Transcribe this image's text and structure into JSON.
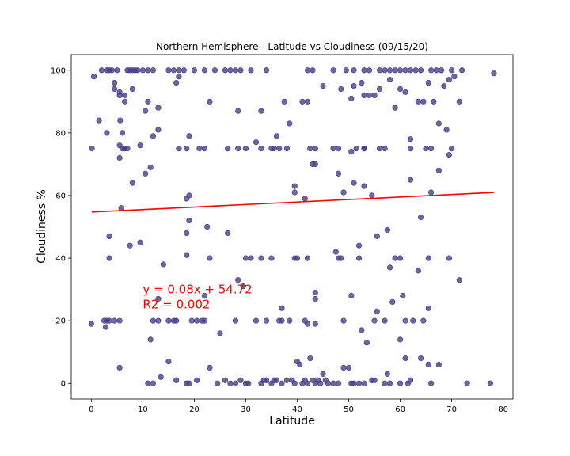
{
  "chart_data": {
    "type": "scatter",
    "title": "Northern Hemisphere - Latitude vs Cloudiness (09/15/20)",
    "xlabel": "Latitude",
    "ylabel": "Cloudiness %",
    "xlim": [
      -3.9,
      81.9
    ],
    "ylim": [
      -5,
      105
    ],
    "xticks": [
      0,
      10,
      20,
      30,
      40,
      50,
      60,
      70,
      80
    ],
    "yticks": [
      0,
      20,
      40,
      60,
      80,
      100
    ],
    "grid": false,
    "marker_color": "#483d8b",
    "regression": {
      "slope": 0.08,
      "intercept": 54.72,
      "x_range": [
        0.1,
        78.2
      ],
      "color": "#ff0000"
    },
    "annotation": {
      "line1": "y = 0.08x + 54.72",
      "line2": "R2 = 0.002",
      "anchor": [
        10,
        30
      ]
    },
    "points": [
      [
        0.1,
        75
      ],
      [
        0.5,
        98
      ],
      [
        1.5,
        84
      ],
      [
        2.0,
        100
      ],
      [
        3.0,
        100
      ],
      [
        3.5,
        100
      ],
      [
        4.0,
        100
      ],
      [
        4.5,
        96
      ],
      [
        5.0,
        100
      ],
      [
        5.5,
        93
      ],
      [
        5.6,
        84
      ],
      [
        6.0,
        80
      ],
      [
        6.5,
        90
      ],
      [
        7.0,
        100
      ],
      [
        7.5,
        100
      ],
      [
        8.0,
        100
      ],
      [
        8.5,
        100
      ],
      [
        9.0,
        100
      ],
      [
        10.0,
        100
      ],
      [
        11.0,
        100
      ],
      [
        12.0,
        100
      ],
      [
        13.0,
        88
      ],
      [
        15.0,
        100
      ],
      [
        16.0,
        100
      ],
      [
        17.0,
        100
      ],
      [
        18.0,
        100
      ],
      [
        19.0,
        79
      ],
      [
        20.0,
        100
      ],
      [
        22.0,
        100
      ],
      [
        24.0,
        100
      ],
      [
        26.0,
        100
      ],
      [
        27.0,
        100
      ],
      [
        28.0,
        100
      ],
      [
        29.0,
        100
      ],
      [
        31.0,
        100
      ],
      [
        34.0,
        100
      ],
      [
        42.0,
        100
      ],
      [
        43.0,
        100
      ],
      [
        47.0,
        100
      ],
      [
        49.5,
        100
      ],
      [
        51.0,
        100
      ],
      [
        53.0,
        100
      ],
      [
        54.0,
        100
      ],
      [
        56.0,
        100
      ],
      [
        57.0,
        100
      ],
      [
        58.0,
        100
      ],
      [
        59.0,
        100
      ],
      [
        60.0,
        100
      ],
      [
        61.0,
        100
      ],
      [
        62.0,
        100
      ],
      [
        63.0,
        100
      ],
      [
        64.0,
        100
      ],
      [
        66.0,
        100
      ],
      [
        67.0,
        100
      ],
      [
        68.0,
        100
      ],
      [
        70.0,
        100
      ],
      [
        72.0,
        100
      ],
      [
        78.2,
        99
      ],
      [
        4.5,
        94
      ],
      [
        5.5,
        92
      ],
      [
        6.5,
        92
      ],
      [
        8.0,
        94
      ],
      [
        10.5,
        87
      ],
      [
        11.0,
        90
      ],
      [
        12.0,
        79
      ],
      [
        13.0,
        81
      ],
      [
        16.5,
        96
      ],
      [
        17.0,
        98
      ],
      [
        23.0,
        90
      ],
      [
        28.5,
        87
      ],
      [
        32.0,
        77
      ],
      [
        33.0,
        87
      ],
      [
        36.0,
        79
      ],
      [
        37.5,
        90
      ],
      [
        38.5,
        83
      ],
      [
        41.0,
        90
      ],
      [
        42.0,
        90
      ],
      [
        45.0,
        95
      ],
      [
        48.5,
        94
      ],
      [
        50.5,
        91
      ],
      [
        51.0,
        95
      ],
      [
        52.5,
        96
      ],
      [
        53.0,
        92
      ],
      [
        54.0,
        92
      ],
      [
        55.0,
        92
      ],
      [
        56.0,
        94
      ],
      [
        58.0,
        97
      ],
      [
        59.0,
        88
      ],
      [
        60.0,
        94
      ],
      [
        61.0,
        93
      ],
      [
        62.0,
        78
      ],
      [
        63.5,
        90
      ],
      [
        64.5,
        90
      ],
      [
        65.5,
        96
      ],
      [
        66.5,
        90
      ],
      [
        67.5,
        83
      ],
      [
        68.5,
        95
      ],
      [
        69.0,
        81
      ],
      [
        69.5,
        97
      ],
      [
        70.5,
        98
      ],
      [
        71.5,
        90
      ],
      [
        3.0,
        80
      ],
      [
        5.5,
        76
      ],
      [
        6.0,
        75
      ],
      [
        6.5,
        75
      ],
      [
        7.0,
        75
      ],
      [
        9.5,
        76
      ],
      [
        17.0,
        75
      ],
      [
        18.5,
        75
      ],
      [
        21.0,
        75
      ],
      [
        22.0,
        75
      ],
      [
        26.5,
        75
      ],
      [
        28.5,
        75
      ],
      [
        30.0,
        75
      ],
      [
        33.0,
        75
      ],
      [
        35.0,
        75
      ],
      [
        35.5,
        75
      ],
      [
        36.5,
        75
      ],
      [
        38.0,
        75
      ],
      [
        42.5,
        75
      ],
      [
        43.5,
        75
      ],
      [
        47.0,
        75
      ],
      [
        48.0,
        75
      ],
      [
        51.5,
        75
      ],
      [
        53.0,
        75
      ],
      [
        56.0,
        75
      ],
      [
        57.0,
        75
      ],
      [
        62.0,
        75
      ],
      [
        65.0,
        75
      ],
      [
        66.0,
        75
      ],
      [
        69.5,
        73
      ],
      [
        70.0,
        75
      ],
      [
        53.0,
        75
      ],
      [
        50.5,
        74
      ],
      [
        5.5,
        72
      ],
      [
        8.0,
        64
      ],
      [
        11.5,
        69
      ],
      [
        10.5,
        67
      ],
      [
        5.8,
        56
      ],
      [
        18.5,
        59
      ],
      [
        19.0,
        60
      ],
      [
        39.5,
        63
      ],
      [
        39.5,
        61
      ],
      [
        41.5,
        59
      ],
      [
        43.0,
        70
      ],
      [
        43.5,
        70
      ],
      [
        48.0,
        67
      ],
      [
        49.0,
        61
      ],
      [
        51.0,
        64
      ],
      [
        53.0,
        63
      ],
      [
        54.5,
        60
      ],
      [
        62.0,
        65
      ],
      [
        64.0,
        53
      ],
      [
        66.0,
        61
      ],
      [
        67.5,
        68
      ],
      [
        3.5,
        47
      ],
      [
        3.5,
        40
      ],
      [
        7.5,
        44
      ],
      [
        9.5,
        45
      ],
      [
        14.0,
        38
      ],
      [
        18.5,
        48
      ],
      [
        18.5,
        41
      ],
      [
        19.0,
        52
      ],
      [
        22.5,
        50
      ],
      [
        23.0,
        40
      ],
      [
        26.5,
        48
      ],
      [
        30.0,
        40
      ],
      [
        31.0,
        40
      ],
      [
        33.0,
        40
      ],
      [
        35.0,
        40
      ],
      [
        39.5,
        40
      ],
      [
        40.0,
        40
      ],
      [
        42.0,
        40
      ],
      [
        47.5,
        42
      ],
      [
        48.0,
        40
      ],
      [
        48.5,
        40
      ],
      [
        52.0,
        44
      ],
      [
        52.0,
        40
      ],
      [
        55.5,
        47
      ],
      [
        57.5,
        49
      ],
      [
        58.0,
        37
      ],
      [
        59.0,
        40
      ],
      [
        60.0,
        40
      ],
      [
        63.5,
        36
      ],
      [
        65.5,
        40
      ],
      [
        69.5,
        40
      ],
      [
        71.5,
        33
      ],
      [
        13.0,
        27
      ],
      [
        22.0,
        28
      ],
      [
        28.5,
        33
      ],
      [
        29.5,
        31
      ],
      [
        37.0,
        24
      ],
      [
        43.5,
        29
      ],
      [
        43.5,
        27
      ],
      [
        50.5,
        28
      ],
      [
        52.5,
        17
      ],
      [
        53.5,
        13
      ],
      [
        55.5,
        23
      ],
      [
        58.5,
        26
      ],
      [
        60.5,
        28
      ],
      [
        65.5,
        24
      ],
      [
        0.0,
        19
      ],
      [
        2.5,
        20
      ],
      [
        2.8,
        18
      ],
      [
        3.0,
        20
      ],
      [
        3.5,
        20
      ],
      [
        4.5,
        20
      ],
      [
        5.5,
        20
      ],
      [
        11.5,
        14
      ],
      [
        12.0,
        20
      ],
      [
        13.0,
        20
      ],
      [
        15.0,
        20
      ],
      [
        16.0,
        20
      ],
      [
        16.5,
        20
      ],
      [
        19.5,
        20
      ],
      [
        20.5,
        20
      ],
      [
        21.5,
        20
      ],
      [
        22.0,
        20
      ],
      [
        25.0,
        16
      ],
      [
        28.0,
        20
      ],
      [
        32.0,
        20
      ],
      [
        34.0,
        20
      ],
      [
        36.5,
        20
      ],
      [
        37.0,
        20
      ],
      [
        38.5,
        20
      ],
      [
        41.5,
        20
      ],
      [
        42.0,
        19
      ],
      [
        43.5,
        19
      ],
      [
        49.0,
        20
      ],
      [
        55.0,
        20
      ],
      [
        57.0,
        20
      ],
      [
        60.0,
        14
      ],
      [
        61.0,
        20
      ],
      [
        62.5,
        20
      ],
      [
        64.5,
        20
      ],
      [
        5.5,
        5
      ],
      [
        11.0,
        0
      ],
      [
        12.0,
        0
      ],
      [
        13.5,
        2
      ],
      [
        15.0,
        7
      ],
      [
        16.5,
        1
      ],
      [
        18.5,
        0
      ],
      [
        19.0,
        0
      ],
      [
        20.5,
        1
      ],
      [
        23.0,
        5
      ],
      [
        24.5,
        0
      ],
      [
        26.0,
        1
      ],
      [
        27.0,
        0
      ],
      [
        28.0,
        0
      ],
      [
        29.0,
        1
      ],
      [
        30.0,
        0
      ],
      [
        30.5,
        0
      ],
      [
        33.0,
        0
      ],
      [
        33.5,
        1
      ],
      [
        34.0,
        1
      ],
      [
        35.0,
        0
      ],
      [
        35.5,
        1
      ],
      [
        36.0,
        1
      ],
      [
        37.0,
        0
      ],
      [
        38.0,
        1
      ],
      [
        39.0,
        1
      ],
      [
        39.5,
        0
      ],
      [
        40.0,
        7
      ],
      [
        40.5,
        6
      ],
      [
        41.0,
        0
      ],
      [
        41.5,
        1
      ],
      [
        42.0,
        0
      ],
      [
        42.5,
        8
      ],
      [
        43.0,
        1
      ],
      [
        43.5,
        0
      ],
      [
        44.0,
        1
      ],
      [
        44.5,
        0
      ],
      [
        45.0,
        3
      ],
      [
        45.5,
        1
      ],
      [
        46.0,
        0
      ],
      [
        47.0,
        0
      ],
      [
        48.0,
        0
      ],
      [
        49.0,
        5
      ],
      [
        50.0,
        5
      ],
      [
        50.5,
        0
      ],
      [
        51.0,
        0
      ],
      [
        52.0,
        0
      ],
      [
        53.0,
        0
      ],
      [
        54.5,
        1
      ],
      [
        55.0,
        1
      ],
      [
        57.0,
        0
      ],
      [
        57.5,
        3
      ],
      [
        58.0,
        0
      ],
      [
        60.0,
        0
      ],
      [
        61.0,
        8
      ],
      [
        61.5,
        0
      ],
      [
        62.0,
        1
      ],
      [
        64.0,
        8
      ],
      [
        65.5,
        6
      ],
      [
        66.0,
        0
      ],
      [
        67.5,
        6
      ],
      [
        73.0,
        0
      ],
      [
        77.5,
        0
      ]
    ]
  }
}
